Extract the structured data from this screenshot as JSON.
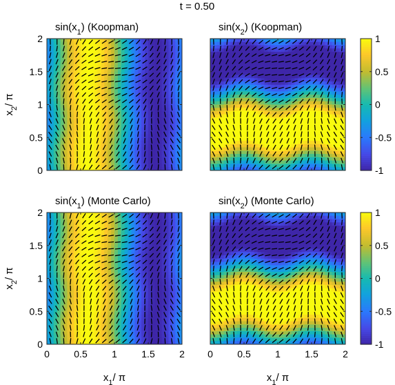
{
  "figure": {
    "suptitle": "t = 0.50"
  },
  "chart_data": [
    {
      "type": "heatmap",
      "title": "sin(x_1) (Koopman)",
      "title_parts": {
        "pre": "sin(x",
        "sub": "1",
        "post": ") (Koopman)"
      },
      "field": "sin_x1",
      "xlim": [
        0,
        2
      ],
      "ylim": [
        0,
        2
      ],
      "xticks": [
        "0",
        "0.5",
        "1",
        "1.5",
        "2"
      ],
      "yticks": [
        "0",
        "0.5",
        "1",
        "1.5",
        "2"
      ],
      "show_xticklabels": false,
      "show_yticklabels": true,
      "ylabel": "x_2/ π",
      "overlay": "quiver"
    },
    {
      "type": "heatmap",
      "title": "sin(x_2) (Koopman)",
      "title_parts": {
        "pre": "sin(x",
        "sub": "2",
        "post": ") (Koopman)"
      },
      "field": "sin_x2",
      "xlim": [
        0,
        2
      ],
      "ylim": [
        0,
        2
      ],
      "xticks": [
        "0",
        "0.5",
        "1",
        "1.5",
        "2"
      ],
      "yticks": [
        "0",
        "0.5",
        "1",
        "1.5",
        "2"
      ],
      "show_xticklabels": false,
      "show_yticklabels": false,
      "overlay": "quiver",
      "colorbar": {
        "range": [
          -1,
          1
        ],
        "ticks": [
          "1",
          "0.5",
          "0",
          "-0.5",
          "-1"
        ],
        "colormap": "parula"
      }
    },
    {
      "type": "heatmap",
      "title": "sin(x_1) (Monte Carlo)",
      "title_parts": {
        "pre": "sin(x",
        "sub": "1",
        "post": ") (Monte Carlo)"
      },
      "field": "sin_x1",
      "xlim": [
        0,
        2
      ],
      "ylim": [
        0,
        2
      ],
      "xticks": [
        "0",
        "0.5",
        "1",
        "1.5",
        "2"
      ],
      "yticks": [
        "0",
        "0.5",
        "1",
        "1.5",
        "2"
      ],
      "show_xticklabels": true,
      "show_yticklabels": true,
      "xlabel": "x_1/ π",
      "ylabel": "x_2/ π",
      "overlay": "quiver"
    },
    {
      "type": "heatmap",
      "title": "sin(x_2) (Monte Carlo)",
      "title_parts": {
        "pre": "sin(x",
        "sub": "2",
        "post": ") (Monte Carlo)"
      },
      "field": "sin_x2",
      "xlim": [
        0,
        2
      ],
      "ylim": [
        0,
        2
      ],
      "xticks": [
        "0",
        "0.5",
        "1",
        "1.5",
        "2"
      ],
      "yticks": [
        "0",
        "0.5",
        "1",
        "1.5",
        "2"
      ],
      "show_xticklabels": true,
      "show_yticklabels": false,
      "xlabel": "x_1/ π",
      "overlay": "quiver",
      "colorbar": {
        "range": [
          -1,
          1
        ],
        "ticks": [
          "1",
          "0.5",
          "0",
          "-0.5",
          "-1"
        ],
        "colormap": "parula"
      }
    }
  ],
  "axis_label_parts": {
    "x": {
      "pre": "x",
      "sub": "1",
      "post": "/ π"
    },
    "y": {
      "pre": "x",
      "sub": "2",
      "post": "/ π"
    }
  }
}
